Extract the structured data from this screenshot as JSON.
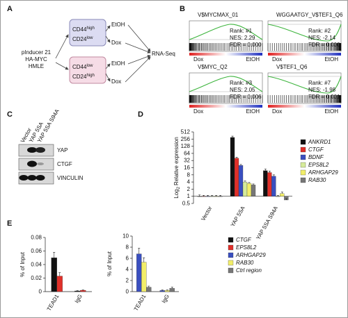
{
  "panel_labels": [
    "A",
    "B",
    "C",
    "D",
    "E"
  ],
  "diagram": {
    "source": [
      "pInducer 21",
      "HA-MYC",
      "HMLE"
    ],
    "groups": [
      {
        "marker1": "CD44",
        "level1": "high",
        "marker2": "CD24",
        "level2": "low"
      },
      {
        "marker1": "CD44",
        "level1": "low",
        "marker2": "CD24",
        "level2": "high"
      }
    ],
    "treatments": [
      "EtOH",
      "Dox",
      "EtOH",
      "Dox"
    ],
    "output": "RNA-Seq"
  },
  "gsea": {
    "plots": [
      {
        "title": "V$MYCMAX_01",
        "rank": "Rank: #1",
        "nes": "NES: 2.29",
        "fdr": "FDR = 0.000"
      },
      {
        "title": "WGGAATGY_V$TEF1_Q6",
        "rank": "Rank: #2",
        "nes": "NES: -2.14",
        "fdr": "FDR = 0.000"
      },
      {
        "title": "V$MYC_Q2",
        "rank": "Rank: #3",
        "nes": "NES: 2.05",
        "fdr": "FDR = 0.006"
      },
      {
        "title": "V$TEF1_Q6",
        "rank": "Rank: #7",
        "nes": "NES: -1.98",
        "fdr": "FDR = 0.001"
      }
    ],
    "left_label": "Dox",
    "right_label": "EtOH"
  },
  "western": {
    "lanes": [
      "Vector",
      "YAP 5SA",
      "YAP 5SA S94A"
    ],
    "bands": [
      "YAP",
      "CTGF",
      "VINCULIN"
    ]
  },
  "chart_data": [
    {
      "type": "bar",
      "y_label": {
        "base": "Log",
        "sub": "2",
        "text": "Relative expression"
      },
      "log_scale": true,
      "log_base": 2,
      "categories": [
        "Vector",
        "YAP 5SA",
        "YAP 5SA S94A"
      ],
      "ylim": [
        0.5,
        512
      ],
      "yticks": [
        0.5,
        1,
        2,
        4,
        8,
        16,
        32,
        64,
        128,
        256,
        512
      ],
      "series": [
        {
          "name": "ANKRD1",
          "color": "#111111",
          "values": [
            1,
            300,
            12
          ],
          "errors": [
            0.15,
            40,
            2
          ]
        },
        {
          "name": "CTGF",
          "color": "#e0302a",
          "values": [
            1,
            40,
            10
          ],
          "errors": [
            0.1,
            4,
            1.5
          ]
        },
        {
          "name": "BDNF",
          "color": "#3a4fc0",
          "values": [
            1,
            20,
            7
          ],
          "errors": [
            0.1,
            2,
            1
          ]
        },
        {
          "name": "EPS8L2",
          "color": "#d6eb9a",
          "values": [
            1,
            4,
            1
          ],
          "errors": [
            0.1,
            0.4,
            0.1
          ]
        },
        {
          "name": "ARHGAP29",
          "color": "#f2ee6a",
          "values": [
            1,
            3.5,
            1.3
          ],
          "errors": [
            0.1,
            0.3,
            0.2
          ]
        },
        {
          "name": "RAB30",
          "color": "#777777",
          "values": [
            1,
            3,
            0.7
          ],
          "errors": [
            0.1,
            0.3,
            0.1
          ]
        }
      ]
    },
    {
      "type": "bar",
      "y_label": "% of Input",
      "categories": [
        "TEAD1",
        "IgG"
      ],
      "ylim": [
        0,
        0.08
      ],
      "yticks": [
        0,
        0.02,
        0.04,
        0.06,
        0.08
      ],
      "series": [
        {
          "name": "CTGF",
          "color": "#111111",
          "values": [
            0.05,
            0.001
          ],
          "errors": [
            0.008,
            0.0005
          ]
        },
        {
          "name": "EPS8L2",
          "color": "#e0302a",
          "values": [
            0.023,
            0.002
          ],
          "errors": [
            0.005,
            0.0005
          ]
        }
      ]
    },
    {
      "type": "bar",
      "y_label": "% of Input",
      "categories": [
        "TEAD1",
        "IgG"
      ],
      "ylim": [
        0,
        10
      ],
      "yticks": [
        0,
        2,
        4,
        6,
        8,
        10
      ],
      "series": [
        {
          "name": "ARHGAP29",
          "color": "#3a4fc0",
          "values": [
            6.8,
            0.2
          ],
          "errors": [
            1,
            0.1
          ]
        },
        {
          "name": "RAB30",
          "color": "#f2ee6a",
          "values": [
            5.3,
            0.2
          ],
          "errors": [
            0.8,
            0.1
          ]
        },
        {
          "name": "Ctrl region",
          "color": "#777777",
          "values": [
            0.8,
            0.6
          ],
          "errors": [
            0.2,
            0.2
          ]
        }
      ]
    }
  ]
}
